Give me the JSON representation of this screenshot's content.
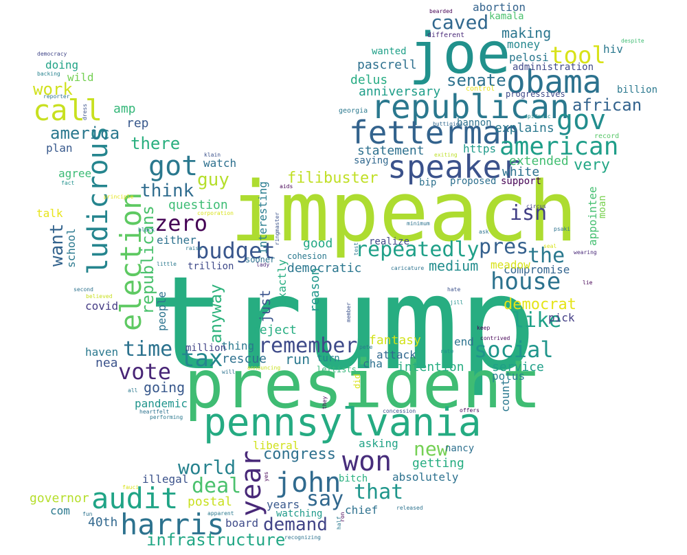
{
  "words": [
    {
      "text": "trump",
      "color": "#27ad81"
    },
    {
      "text": "impeach",
      "color": "#addc30"
    },
    {
      "text": "president",
      "color": "#3fbc73"
    },
    {
      "text": "joe",
      "color": "#21918c"
    },
    {
      "text": "pennsylvania",
      "color": "#25ab82"
    },
    {
      "text": "republican",
      "color": "#2a788e"
    },
    {
      "text": "obama",
      "color": "#2c728e"
    },
    {
      "text": "fetterman",
      "color": "#33638d"
    },
    {
      "text": "speaker",
      "color": "#3b528b"
    },
    {
      "text": "election",
      "color": "#5ec962"
    },
    {
      "text": "ludicrous",
      "color": "#25858e"
    },
    {
      "text": "call",
      "color": "#c8e020"
    },
    {
      "text": "american",
      "color": "#1f9e89"
    },
    {
      "text": "gov",
      "color": "#228d8d"
    },
    {
      "text": "year",
      "color": "#482878"
    },
    {
      "text": "audit",
      "color": "#20a486"
    },
    {
      "text": "harris",
      "color": "#2c728e"
    },
    {
      "text": "won",
      "color": "#472d7b"
    },
    {
      "text": "john",
      "color": "#306a8e"
    },
    {
      "text": "house",
      "color": "#2c728e"
    },
    {
      "text": "zero",
      "color": "#440154"
    },
    {
      "text": "budget",
      "color": "#39568c"
    },
    {
      "text": "got",
      "color": "#2a788e"
    },
    {
      "text": "tool",
      "color": "#d8e219"
    },
    {
      "text": "caved",
      "color": "#31688e"
    },
    {
      "text": "social",
      "color": "#1f958b"
    },
    {
      "text": "repeatedly",
      "color": "#1fa088"
    },
    {
      "text": "remember",
      "color": "#3e4a89"
    },
    {
      "text": "vote",
      "color": "#482576"
    },
    {
      "text": "tax",
      "color": "#24868e"
    },
    {
      "text": "time",
      "color": "#2c728e"
    },
    {
      "text": "the",
      "color": "#2a788e"
    },
    {
      "text": "like",
      "color": "#1fa188"
    },
    {
      "text": "pres",
      "color": "#35608d"
    },
    {
      "text": "isn",
      "color": "#424086"
    },
    {
      "text": "senate",
      "color": "#2d718e"
    },
    {
      "text": "african",
      "color": "#33638d"
    },
    {
      "text": "america",
      "color": "#2a788e"
    },
    {
      "text": "work",
      "color": "#d0e11c"
    },
    {
      "text": "there",
      "color": "#29af7f"
    },
    {
      "text": "think",
      "color": "#2f6c8e"
    },
    {
      "text": "guy",
      "color": "#b5de2b"
    },
    {
      "text": "want",
      "color": "#33638d"
    },
    {
      "text": "republicans",
      "color": "#4ac16d"
    },
    {
      "text": "anyway",
      "color": "#2eb37c"
    },
    {
      "text": "new",
      "color": "#75d054"
    },
    {
      "text": "say",
      "color": "#31688e"
    },
    {
      "text": "that",
      "color": "#1f968b"
    },
    {
      "text": "deal",
      "color": "#4ac16d"
    },
    {
      "text": "world",
      "color": "#26828e"
    },
    {
      "text": "demand",
      "color": "#414487"
    },
    {
      "text": "infrastructure",
      "color": "#22a785"
    },
    {
      "text": "filibuster",
      "color": "#c0df25"
    },
    {
      "text": "democrat",
      "color": "#e5e419"
    },
    {
      "text": "congress",
      "color": "#2d708e"
    },
    {
      "text": "very",
      "color": "#22a785"
    },
    {
      "text": "explains",
      "color": "#2a788e"
    },
    {
      "text": "statement",
      "color": "#2d708e"
    },
    {
      "text": "making",
      "color": "#2a768e"
    },
    {
      "text": "money",
      "color": "#24878e"
    },
    {
      "text": "pascrell",
      "color": "#2d708e"
    },
    {
      "text": "delus",
      "color": "#25ab82"
    },
    {
      "text": "anniversary",
      "color": "#1f9e89"
    },
    {
      "text": "extended",
      "color": "#42be71"
    },
    {
      "text": "white",
      "color": "#2c718e"
    },
    {
      "text": "amp",
      "color": "#35b779"
    },
    {
      "text": "rep",
      "color": "#38588c"
    },
    {
      "text": "plan",
      "color": "#38598c"
    },
    {
      "text": "doing",
      "color": "#20a386"
    },
    {
      "text": "wild",
      "color": "#75d054"
    },
    {
      "text": "agree",
      "color": "#3bbb75"
    },
    {
      "text": "talk",
      "color": "#e7e419"
    },
    {
      "text": "school",
      "color": "#2a788e"
    },
    {
      "text": "watch",
      "color": "#2d708e"
    },
    {
      "text": "question",
      "color": "#3dbc74"
    },
    {
      "text": "either",
      "color": "#2d718e"
    },
    {
      "text": "good",
      "color": "#22a884"
    },
    {
      "text": "democratic",
      "color": "#2a768e"
    },
    {
      "text": "medium",
      "color": "#228d8d"
    },
    {
      "text": "interesting",
      "color": "#287c8e"
    },
    {
      "text": "realize",
      "color": "#404688"
    },
    {
      "text": "exactly",
      "color": "#26ad81"
    },
    {
      "text": "reason",
      "color": "#1f978b"
    },
    {
      "text": "just",
      "color": "#3a548c"
    },
    {
      "text": "reject",
      "color": "#26ad81"
    },
    {
      "text": "covid",
      "color": "#443b84"
    },
    {
      "text": "people",
      "color": "#2c738e"
    },
    {
      "text": "haven",
      "color": "#2a788e"
    },
    {
      "text": "nea",
      "color": "#3b528b"
    },
    {
      "text": "rescue",
      "color": "#2d708e"
    },
    {
      "text": "run",
      "color": "#2a788e"
    },
    {
      "text": "fantasy",
      "color": "#d2e21b"
    },
    {
      "text": "attack",
      "color": "#31688e"
    },
    {
      "text": "cha",
      "color": "#2d718e"
    },
    {
      "text": "turn",
      "color": "#26828e"
    },
    {
      "text": "intention",
      "color": "#26ad81"
    },
    {
      "text": "service",
      "color": "#1f9f88"
    },
    {
      "text": "potus",
      "color": "#26828e"
    },
    {
      "text": "count",
      "color": "#2a788e"
    },
    {
      "text": "going",
      "color": "#38588c"
    },
    {
      "text": "pandemic",
      "color": "#1f948c"
    },
    {
      "text": "end",
      "color": "#2c738e"
    },
    {
      "text": "compromise",
      "color": "#32648e"
    },
    {
      "text": "meadow",
      "color": "#d8e219"
    },
    {
      "text": "pick",
      "color": "#433e85"
    },
    {
      "text": "appointee",
      "color": "#44bf70"
    },
    {
      "text": "moan",
      "color": "#7ad151"
    },
    {
      "text": "hiv",
      "color": "#2a788e"
    },
    {
      "text": "administration",
      "color": "#3f4889"
    },
    {
      "text": "pelosi",
      "color": "#2a788e"
    },
    {
      "text": "abortion",
      "color": "#33638d"
    },
    {
      "text": "kamala",
      "color": "#4ac16d"
    },
    {
      "text": "wanted",
      "color": "#1fa088"
    },
    {
      "text": "billion",
      "color": "#2a788e"
    },
    {
      "text": "progressives",
      "color": "#3e4989"
    },
    {
      "text": "bannon",
      "color": "#2d718e"
    },
    {
      "text": "https",
      "color": "#1f9a8a"
    },
    {
      "text": "saying",
      "color": "#31688e"
    },
    {
      "text": "bip",
      "color": "#2d718e"
    },
    {
      "text": "proposed",
      "color": "#2d708e"
    },
    {
      "text": "support",
      "color": "#440154"
    },
    {
      "text": "liberal",
      "color": "#d0e11c"
    },
    {
      "text": "asking",
      "color": "#20a386"
    },
    {
      "text": "nancy",
      "color": "#2d708e"
    },
    {
      "text": "getting",
      "color": "#26ad81"
    },
    {
      "text": "absolutely",
      "color": "#2c718e"
    },
    {
      "text": "bitch",
      "color": "#2ab07f"
    },
    {
      "text": "chief",
      "color": "#2d718e"
    },
    {
      "text": "watching",
      "color": "#1f9a8a"
    },
    {
      "text": "years",
      "color": "#38588c"
    },
    {
      "text": "postal",
      "color": "#c8e020"
    },
    {
      "text": "board",
      "color": "#3e4a89"
    },
    {
      "text": "40th",
      "color": "#31688e"
    },
    {
      "text": "illegal",
      "color": "#3b528b"
    },
    {
      "text": "governor",
      "color": "#b5de2b"
    },
    {
      "text": "com",
      "color": "#2a788e"
    },
    {
      "text": "thing",
      "color": "#2a788e"
    },
    {
      "text": "million",
      "color": "#414487"
    },
    {
      "text": "trillion",
      "color": "#3e4989"
    },
    {
      "text": "sooner",
      "color": "#2c728e"
    },
    {
      "text": "cohesion",
      "color": "#2a788e"
    },
    {
      "text": "different",
      "color": "#482878"
    },
    {
      "text": "control",
      "color": "#e7e419"
    },
    {
      "text": "record",
      "color": "#56c667"
    },
    {
      "text": "georgia",
      "color": "#2a788e"
    },
    {
      "text": "buttigieg",
      "color": "#31688e"
    },
    {
      "text": "epidemic",
      "color": "#228d8d"
    },
    {
      "text": "exiting",
      "color": "#bddf26"
    },
    {
      "text": "circus",
      "color": "#424086"
    },
    {
      "text": "despite",
      "color": "#3fbc73"
    },
    {
      "text": "bearded",
      "color": "#440154"
    },
    {
      "text": "democracy",
      "color": "#404688"
    },
    {
      "text": "backing",
      "color": "#26828e"
    },
    {
      "text": "reporter",
      "color": "#2c728e"
    },
    {
      "text": "dress",
      "color": "#3b528b"
    },
    {
      "text": "fact",
      "color": "#21918c"
    },
    {
      "text": "principle",
      "color": "#e5e419"
    },
    {
      "text": "corporation",
      "color": "#d8e219"
    },
    {
      "text": "klain",
      "color": "#3b528b"
    },
    {
      "text": "aids",
      "color": "#440154"
    },
    {
      "text": "ringmaster",
      "color": "#3b528b"
    },
    {
      "text": "minimum",
      "color": "#2c728e"
    },
    {
      "text": "ask",
      "color": "#2c728e"
    },
    {
      "text": "psaki",
      "color": "#2c728e"
    },
    {
      "text": "black",
      "color": "#2a788e"
    },
    {
      "text": "raise",
      "color": "#2a788e"
    },
    {
      "text": "lady",
      "color": "#482878"
    },
    {
      "text": "little",
      "color": "#2a788e"
    },
    {
      "text": "second",
      "color": "#2c728e"
    },
    {
      "text": "believed",
      "color": "#c8e020"
    },
    {
      "text": "test",
      "color": "#2a788e"
    },
    {
      "text": "caricature",
      "color": "#2c728e"
    },
    {
      "text": "seal",
      "color": "#d8e219"
    },
    {
      "text": "wearing",
      "color": "#482878"
    },
    {
      "text": "lie",
      "color": "#440154"
    },
    {
      "text": "hate",
      "color": "#3b528b"
    },
    {
      "text": "jill",
      "color": "#21918c"
    },
    {
      "text": "member",
      "color": "#3b528b"
    },
    {
      "text": "keep",
      "color": "#440154"
    },
    {
      "text": "contrived",
      "color": "#440154"
    },
    {
      "text": "rate",
      "color": "#21918c"
    },
    {
      "text": "pete",
      "color": "#2a788e"
    },
    {
      "text": "announcing",
      "color": "#c8e020"
    },
    {
      "text": "did",
      "color": "#d8e219"
    },
    {
      "text": "will",
      "color": "#2c728e"
    },
    {
      "text": "leftists",
      "color": "#35b779"
    },
    {
      "text": "all",
      "color": "#2a788e"
    },
    {
      "text": "heartfelt",
      "color": "#2c728e"
    },
    {
      "text": "performing",
      "color": "#2a788e"
    },
    {
      "text": "they",
      "color": "#440154"
    },
    {
      "text": "concession",
      "color": "#3b528b"
    },
    {
      "text": "offers",
      "color": "#440154"
    },
    {
      "text": "fauci",
      "color": "#d8e219"
    },
    {
      "text": "fun",
      "color": "#2c728e"
    },
    {
      "text": "apparent",
      "color": "#2a788e"
    },
    {
      "text": "yes",
      "color": "#440154"
    },
    {
      "text": "recognizing",
      "color": "#2c728e"
    },
    {
      "text": "half",
      "color": "#2a788e"
    },
    {
      "text": "ron",
      "color": "#440154"
    },
    {
      "text": "released",
      "color": "#2c728e"
    }
  ]
}
